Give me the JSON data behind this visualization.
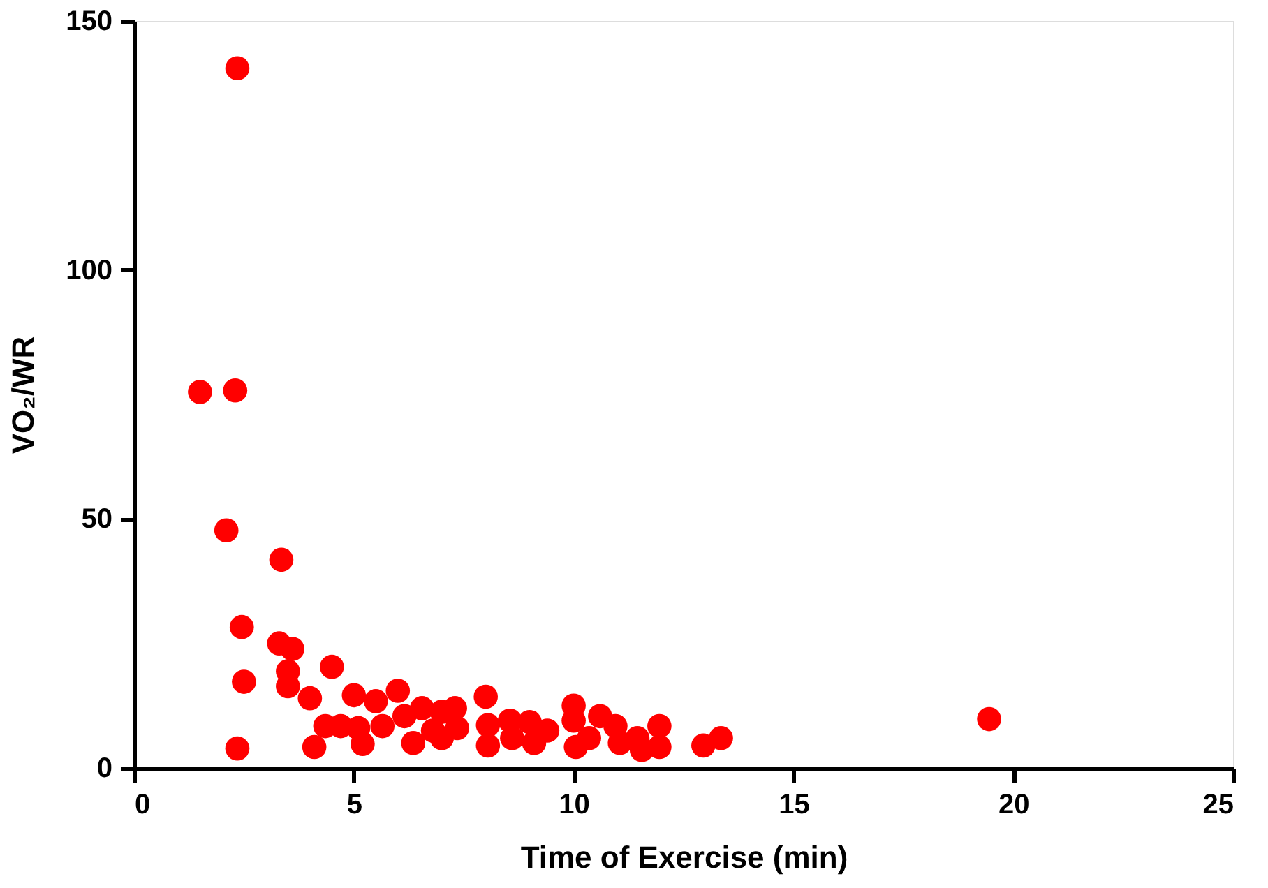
{
  "chart_data": {
    "type": "scatter",
    "xlabel": "Time of Exercise (min)",
    "ylabel": "VO₂/WR",
    "series": [
      {
        "color": "#ff0000",
        "x": [
          2.35,
          1.5,
          2.3,
          2.1,
          3.35,
          2.45,
          3.3,
          3.6,
          2.5,
          3.5,
          3.5,
          2.35,
          4.0,
          4.5,
          4.1,
          4.35,
          4.7,
          5.0,
          5.1,
          5.2,
          5.5,
          5.65,
          6.0,
          6.15,
          6.35,
          6.55,
          6.8,
          7.0,
          7.0,
          7.3,
          7.35,
          8.0,
          8.05,
          8.05,
          8.55,
          8.6,
          9.0,
          9.1,
          9.4,
          10.0,
          10.0,
          10.05,
          10.35,
          10.6,
          10.95,
          11.05,
          11.45,
          11.55,
          11.95,
          11.95,
          12.95,
          13.35,
          19.45
        ],
        "values": [
          140.5,
          75.5,
          75.8,
          47.7,
          41.8,
          28.3,
          25,
          23.9,
          17.3,
          19.4,
          16.4,
          3.9,
          14,
          20.3,
          4.2,
          8.4,
          8.4,
          14.6,
          8,
          4.8,
          13.4,
          8.4,
          15.5,
          10.4,
          5,
          12,
          7.5,
          11.3,
          6,
          12,
          8,
          14.3,
          8.6,
          4.5,
          9.5,
          6,
          9.2,
          5,
          7.5,
          12.5,
          9.5,
          4.2,
          6,
          10.4,
          8.4,
          5,
          6,
          3.6,
          8.4,
          4.2,
          4.5,
          6,
          9.8
        ]
      }
    ],
    "xlim": [
      0,
      25
    ],
    "xticks": [
      0,
      5,
      10,
      15,
      20,
      25
    ],
    "ylim": [
      0,
      150
    ],
    "yticks": [
      0,
      50,
      100,
      150
    ],
    "marker": "circle",
    "grid": false,
    "legend": false
  }
}
